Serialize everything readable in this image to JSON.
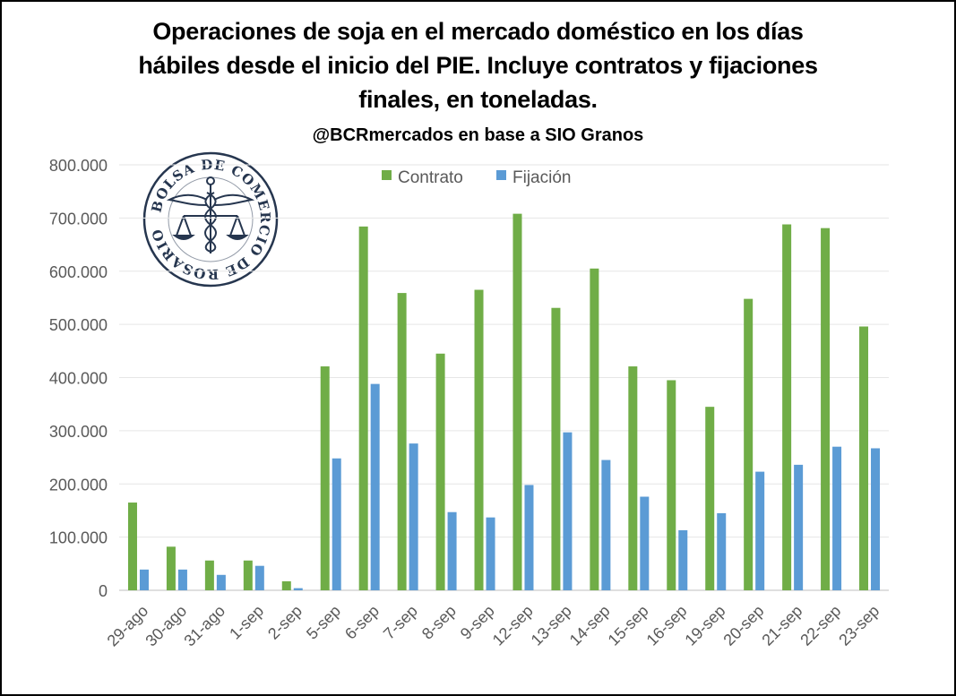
{
  "title_lines": [
    "Operaciones de soja en el mercado doméstico en los días",
    "hábiles desde el inicio del PIE. Incluye contratos y fijaciones",
    "finales, en toneladas."
  ],
  "subtitle": "@BCRmercados en base a SIO Granos",
  "logo_text": "BOLSA DE COMERCIO DE ROSARIO",
  "colors": {
    "contrato": "#70ad47",
    "fijacion": "#5b9bd5",
    "grid": "#e6e6e6",
    "axis_text": "#595959"
  },
  "chart_data": {
    "type": "bar",
    "categories": [
      "29-ago",
      "30-ago",
      "31-ago",
      "1-sep",
      "2-sep",
      "5-sep",
      "6-sep",
      "7-sep",
      "8-sep",
      "9-sep",
      "12-sep",
      "13-sep",
      "14-sep",
      "15-sep",
      "16-sep",
      "19-sep",
      "20-sep",
      "21-sep",
      "22-sep",
      "23-sep"
    ],
    "series": [
      {
        "name": "Contrato",
        "color": "#70ad47",
        "values": [
          165000,
          82000,
          56000,
          56000,
          17000,
          421000,
          684000,
          559000,
          445000,
          565000,
          708000,
          531000,
          605000,
          421000,
          395000,
          345000,
          548000,
          688000,
          681000,
          496000
        ]
      },
      {
        "name": "Fijación",
        "color": "#5b9bd5",
        "values": [
          39000,
          39000,
          29000,
          46000,
          4000,
          248000,
          388000,
          276000,
          147000,
          137000,
          198000,
          297000,
          245000,
          176000,
          113000,
          145000,
          223000,
          236000,
          270000,
          267000
        ]
      }
    ],
    "ylim": [
      0,
      800000
    ],
    "yticks": [
      0,
      100000,
      200000,
      300000,
      400000,
      500000,
      600000,
      700000,
      800000
    ],
    "ytick_labels": [
      "0",
      "100.000",
      "200.000",
      "300.000",
      "400.000",
      "500.000",
      "600.000",
      "700.000",
      "800.000"
    ],
    "grid": true,
    "legend": "top-center"
  }
}
